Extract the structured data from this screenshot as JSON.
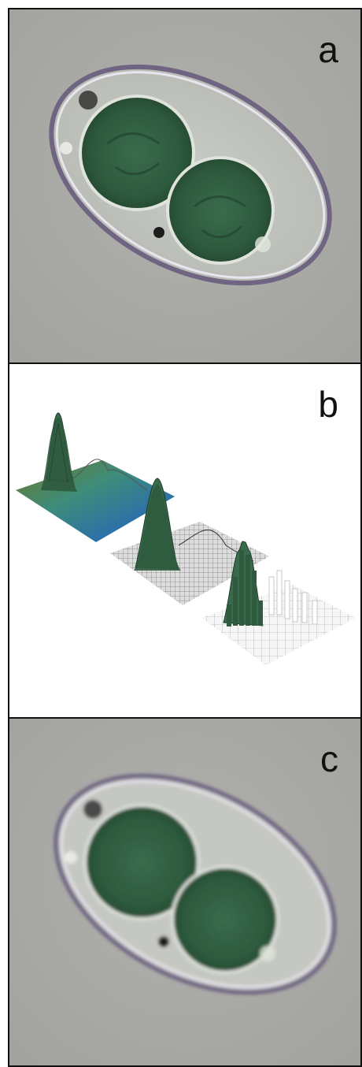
{
  "figure": {
    "panels": [
      {
        "label": "a",
        "content": "micrograph-cell"
      },
      {
        "label": "b",
        "content": "3d-intensity-surfaces"
      },
      {
        "label": "c",
        "content": "micrograph-cell-blurred"
      }
    ],
    "colors": {
      "background_gray": "#a9aaa6",
      "chloroplast_green": "#2f5a3e",
      "peak_green": "#3a6a4c",
      "cell_wall": "#6a5f7a"
    }
  }
}
